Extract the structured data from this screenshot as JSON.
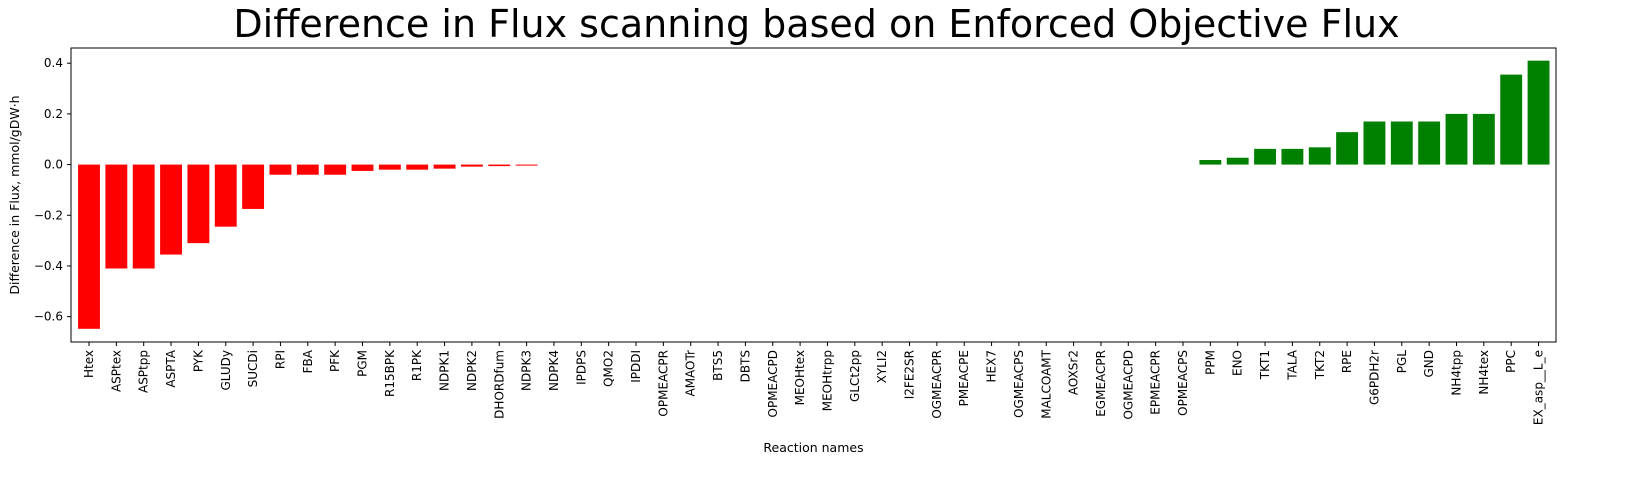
{
  "chart_data": {
    "type": "bar",
    "title": "Difference in Flux scanning based on Enforced Objective Flux",
    "xlabel": "Reaction names",
    "ylabel": "Difference in Flux, mmol/gDW·h",
    "ylim": [
      -0.7,
      0.46
    ],
    "yticks": [
      -0.6,
      -0.4,
      -0.2,
      0.0,
      0.2,
      0.4
    ],
    "ytick_labels": [
      "−0.6",
      "−0.4",
      "−0.2",
      "0.0",
      "0.2",
      "0.4"
    ],
    "grid": false,
    "colors": {
      "negative": "#ff0000",
      "positive": "#008000"
    },
    "categories": [
      "Htex",
      "ASPtex",
      "ASPtpp",
      "ASPTA",
      "PYK",
      "GLUDy",
      "SUCDi",
      "RPI",
      "FBA",
      "PFK",
      "PGM",
      "R15BPK",
      "R1PK",
      "NDPK1",
      "NDPK2",
      "DHORDfum",
      "NDPK3",
      "NDPK4",
      "IPDPS",
      "QMO2",
      "IPDDI",
      "OPMEACPR",
      "AMAOTr",
      "BTS5",
      "DBTS",
      "OPMEACPD",
      "MEOHtex",
      "MEOHtrpp",
      "GLCt2pp",
      "XYLI2",
      "I2FE2SR",
      "OGMEACPR",
      "PMEACPE",
      "HEX7",
      "OGMEACPS",
      "MALCOAMT",
      "AOXSr2",
      "EGMEACPR",
      "OGMEACPD",
      "EPMEACPR",
      "OPMEACPS",
      "PPM",
      "ENO",
      "TKT1",
      "TALA",
      "TKT2",
      "RPE",
      "G6PDH2r",
      "PGL",
      "GND",
      "NH4tpp",
      "NH4tex",
      "PPC",
      "EX_asp__L_e"
    ],
    "values": [
      -0.648,
      -0.41,
      -0.41,
      -0.355,
      -0.31,
      -0.245,
      -0.175,
      -0.04,
      -0.04,
      -0.04,
      -0.025,
      -0.02,
      -0.02,
      -0.016,
      -0.008,
      -0.006,
      -0.004,
      0,
      0,
      0,
      0,
      0,
      0,
      0,
      0,
      0,
      0,
      0,
      0,
      0,
      0,
      0,
      0,
      0,
      0,
      0,
      0,
      0,
      0,
      0,
      0,
      0.018,
      0.027,
      0.062,
      0.062,
      0.068,
      0.128,
      0.17,
      0.17,
      0.17,
      0.2,
      0.2,
      0.355,
      0.41
    ]
  }
}
